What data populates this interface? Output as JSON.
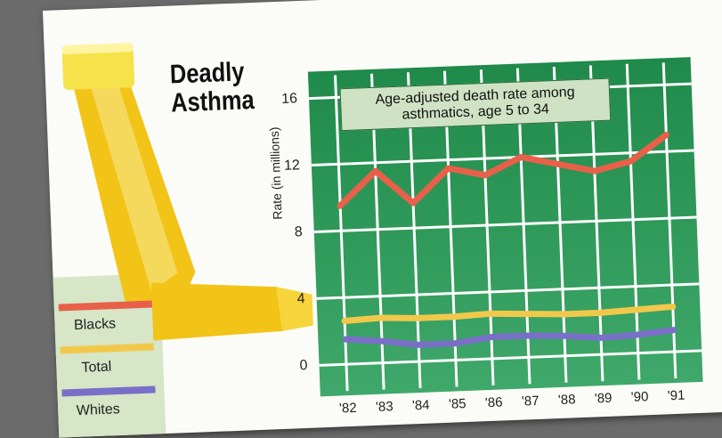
{
  "chart_data": {
    "type": "line",
    "title": "Deadly Asthma",
    "annotation": "Age-adjusted death rate among asthmatics, age 5 to 34",
    "y_label": "Rate (in millions)",
    "categories": [
      "'82",
      "'83",
      "'84",
      "'85",
      "'86",
      "'87",
      "'88",
      "'89",
      "'90",
      "'91"
    ],
    "series": [
      {
        "name": "Blacks",
        "color": "#e8604a",
        "values": [
          9.5,
          11.5,
          9.5,
          11.5,
          11,
          12,
          11.5,
          11,
          11.5,
          13
        ]
      },
      {
        "name": "Total",
        "color": "#f2c84b",
        "values": [
          2.6,
          2.7,
          2.6,
          2.6,
          2.7,
          2.6,
          2.5,
          2.5,
          2.6,
          2.7
        ]
      },
      {
        "name": "Whites",
        "color": "#7a6fc8",
        "values": [
          1.5,
          1.3,
          1.0,
          1.0,
          1.3,
          1.3,
          1.2,
          1.0,
          1.1,
          1.3
        ]
      }
    ],
    "ylim": [
      0,
      16
    ],
    "yticks": [
      0,
      4,
      8,
      12,
      16
    ],
    "grid": true
  }
}
